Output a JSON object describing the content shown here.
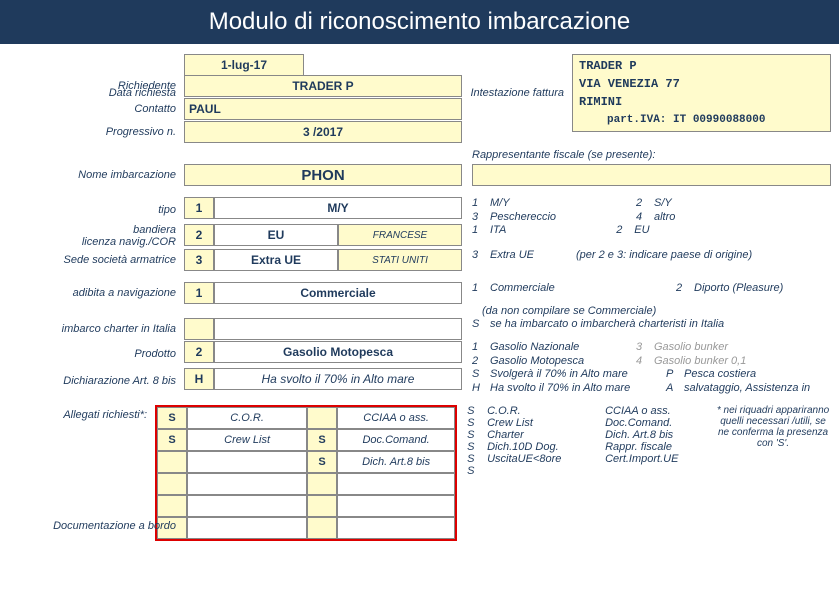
{
  "header": "Modulo di riconoscimento imbarcazione",
  "labels": {
    "data": "Data richiesta",
    "richiedente": "Richiedente",
    "contatto": "Contatto",
    "progressivo": "Progressivo n.",
    "intestazione": "Intestazione fattura",
    "rappresentante": "Rappresentante fiscale (se presente):",
    "nome": "Nome imbarcazione",
    "tipo": "tipo",
    "bandiera": "bandiera licenza navig./COR",
    "sede": "Sede società armatrice",
    "adibita": "adibita a navigazione",
    "charter": "imbarco charter in Italia",
    "prodotto": "Prodotto",
    "art8": "Dichiarazione Art. 8 bis",
    "allegati": "Allegati richiesti*:",
    "docbordo": "Documentazione a bordo"
  },
  "form": {
    "data": "1-lug-17",
    "richiedente": "TRADER P",
    "contatto": "PAUL",
    "progressivo": "3 /2017",
    "nome": "PHON",
    "tipo_n": "1",
    "tipo_v": "M/Y",
    "bandiera_n": "2",
    "bandiera_v": "EU",
    "bandiera_p": "FRANCESE",
    "sede_n": "3",
    "sede_v": "Extra UE",
    "sede_p": "STATI UNITI",
    "adibita_n": "1",
    "adibita_v": "Commerciale",
    "charter_n": "",
    "prodotto_n": "2",
    "prodotto_v": "Gasolio Motopesca",
    "art8_n": "H",
    "art8_v": "Ha svolto il 70% in Alto mare"
  },
  "fattura": {
    "l1": "TRADER P",
    "l2": "VIA VENEZIA 77",
    "l3": "RIMINI",
    "piva_lbl": "part.IVA:",
    "piva": "IT 00990088000"
  },
  "opt_tipo": [
    {
      "n": "1",
      "t": "M/Y"
    },
    {
      "n": "2",
      "t": "S/Y"
    },
    {
      "n": "3",
      "t": "Peschereccio"
    },
    {
      "n": "4",
      "t": "altro"
    }
  ],
  "opt_band": [
    {
      "n": "1",
      "t": "ITA"
    },
    {
      "n": "2",
      "t": "EU"
    },
    {
      "n": "3",
      "t": "Extra UE"
    },
    {
      "n": "",
      "t": "(per 2 e 3: indicare paese di origine)"
    }
  ],
  "opt_adib": [
    {
      "n": "1",
      "t": "Commerciale"
    },
    {
      "n": "2",
      "t": "Diporto (Pleasure)"
    }
  ],
  "noncomp": "(da non compilare se Commerciale)",
  "opt_charter": {
    "n": "S",
    "t": " se ha imbarcato o imbarcherà charteristi in Italia"
  },
  "opt_prod": [
    {
      "n": "1",
      "t": "Gasolio Nazionale",
      "g": false
    },
    {
      "n": "3",
      "t": "Gasolio bunker",
      "g": true
    },
    {
      "n": "2",
      "t": "Gasolio Motopesca",
      "g": false
    },
    {
      "n": "4",
      "t": "Gasolio bunker 0,1",
      "g": true
    }
  ],
  "opt_art8": [
    {
      "n": "S",
      "t": "Svolgerà il 70% in Alto mare"
    },
    {
      "n": "P",
      "t": "Pesca costiera"
    },
    {
      "n": "H",
      "t": "Ha svolto il 70% in Alto mare"
    },
    {
      "n": "A",
      "t": "salvataggio, Assistenza in"
    }
  ],
  "attach": [
    {
      "s1": "S",
      "t1": "C.O.R.",
      "s2": "",
      "t2": "CCIAA o ass."
    },
    {
      "s1": "S",
      "t1": "Crew List",
      "s2": "S",
      "t2": "Doc.Comand."
    },
    {
      "s1": "",
      "t1": "",
      "s2": "S",
      "t2": "Dich. Art.8 bis"
    },
    {
      "s1": "",
      "t1": "",
      "s2": "",
      "t2": ""
    },
    {
      "s1": "",
      "t1": "",
      "s2": "",
      "t2": ""
    },
    {
      "s1": "",
      "t1": "",
      "s2": "",
      "t2": ""
    }
  ],
  "attach_opts": [
    {
      "m": "S",
      "a": "C.O.R.",
      "b": "CCIAA o ass."
    },
    {
      "m": "S",
      "a": "Crew List",
      "b": "Doc.Comand."
    },
    {
      "m": "S",
      "a": "Charter",
      "b": "Dich. Art.8 bis"
    },
    {
      "m": "S",
      "a": "Dich.10D Dog.",
      "b": "Rappr. fiscale"
    },
    {
      "m": "S",
      "a": "UscitaUE<8ore",
      "b": "Cert.Import.UE"
    },
    {
      "m": "S",
      "a": "",
      "b": ""
    }
  ],
  "attach_note": "* nei riquadri appariranno quelli necessari /utili, se ne conferma la presenza con 'S'."
}
